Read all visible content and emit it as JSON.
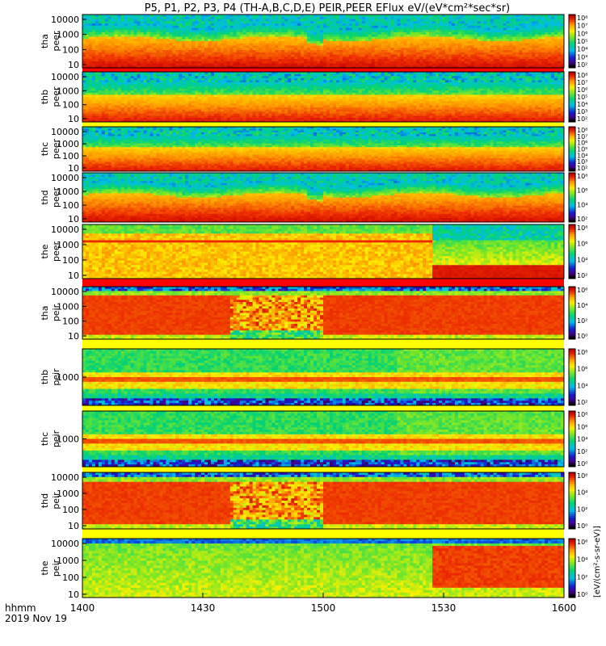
{
  "title": "P5, P1, P2, P3, P4 (TH-A,B,C,D,E) PEIR,PEER EFlux eV/(eV*cm²*sec*sr)",
  "time_axis": {
    "label_line1": "hhmm",
    "label_line2": "2019 Nov 19",
    "ticks": [
      "1400",
      "1430",
      "1500",
      "1530",
      "1600"
    ]
  },
  "colorbar_unit_label": "[eV/(cm²-s-sr-eV)]",
  "chart_data": [
    {
      "type": "heatmap",
      "probe": "tha",
      "label_top": "tha",
      "label_bottom": "peer",
      "y_ticks": [
        "10",
        "100",
        "1000",
        "10000"
      ],
      "scale": "log",
      "colorbar_ticks": [
        "10²",
        "10³",
        "10⁴",
        "10⁵",
        "10⁶",
        "10⁷",
        "10⁸"
      ],
      "variant": "peer_a"
    },
    {
      "type": "heatmap",
      "probe": "thb",
      "label_top": "thb",
      "label_bottom": "peer",
      "y_ticks": [
        "10",
        "100",
        "1000",
        "10000"
      ],
      "scale": "log",
      "colorbar_ticks": [
        "10²",
        "10³",
        "10⁴",
        "10⁵",
        "10⁶",
        "10⁷",
        "10⁸"
      ],
      "variant": "peer_b"
    },
    {
      "type": "heatmap",
      "probe": "thc",
      "label_top": "thc",
      "label_bottom": "peer",
      "y_ticks": [
        "10",
        "100",
        "1000",
        "10000"
      ],
      "scale": "log",
      "colorbar_ticks": [
        "10²",
        "10³",
        "10⁴",
        "10⁵",
        "10⁶",
        "10⁷",
        "10⁸"
      ],
      "variant": "peer_c"
    },
    {
      "type": "heatmap",
      "probe": "thd",
      "label_top": "thd",
      "label_bottom": "peer",
      "y_ticks": [
        "10",
        "100",
        "1000",
        "10000"
      ],
      "scale": "log",
      "colorbar_ticks": [
        "10²",
        "10⁴",
        "10⁶",
        "10⁸"
      ],
      "variant": "peer_d"
    },
    {
      "type": "heatmap",
      "probe": "the",
      "label_top": "the",
      "label_bottom": "peer",
      "y_ticks": [
        "10",
        "100",
        "1000",
        "10000"
      ],
      "scale": "log",
      "colorbar_ticks": [
        "10²",
        "10⁴",
        "10⁶",
        "10⁸"
      ],
      "variant": "peer_e"
    },
    {
      "type": "heatmap",
      "probe": "tha",
      "label_top": "tha",
      "label_bottom": "peir",
      "y_ticks": [
        "10",
        "100",
        "1000",
        "10000"
      ],
      "scale": "log",
      "colorbar_ticks": [
        "10⁰",
        "10²",
        "10⁴",
        "10⁶"
      ],
      "variant": "peir_a"
    },
    {
      "type": "heatmap",
      "probe": "thb",
      "label_top": "thb",
      "label_bottom": "peir",
      "y_ticks": [
        "1000"
      ],
      "scale": "log",
      "colorbar_ticks": [
        "10²",
        "10⁴",
        "10⁶",
        "10⁸"
      ],
      "variant": "peir_b"
    },
    {
      "type": "heatmap",
      "probe": "thc",
      "label_top": "thc",
      "label_bottom": "peir",
      "y_ticks": [
        "1000"
      ],
      "scale": "log",
      "colorbar_ticks": [
        "10⁰",
        "10²",
        "10⁴",
        "10⁶",
        "10⁸"
      ],
      "variant": "peir_c"
    },
    {
      "type": "heatmap",
      "probe": "thd",
      "label_top": "thd",
      "label_bottom": "peir",
      "y_ticks": [
        "10",
        "100",
        "1000",
        "10000"
      ],
      "scale": "log",
      "colorbar_ticks": [
        "10⁰",
        "10²",
        "10⁴",
        "10⁶"
      ],
      "variant": "peir_d"
    },
    {
      "type": "heatmap",
      "probe": "the",
      "label_top": "the",
      "label_bottom": "peir",
      "y_ticks": [
        "10",
        "100",
        "1000",
        "10000"
      ],
      "scale": "log",
      "colorbar_ticks": [
        "10⁰",
        "10²",
        "10⁴",
        "10⁶"
      ],
      "variant": "peir_e"
    }
  ]
}
